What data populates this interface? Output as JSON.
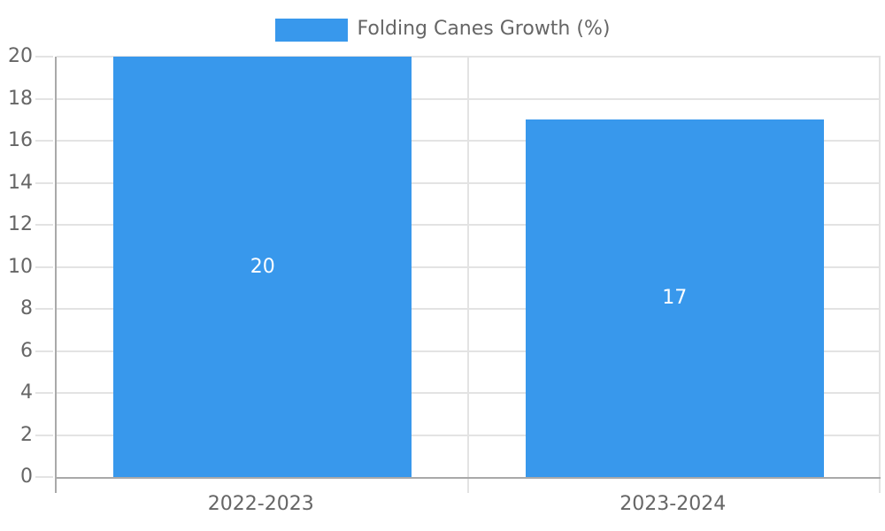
{
  "chart_data": {
    "type": "bar",
    "title": "",
    "legend": {
      "label": "Folding Canes Growth (%)",
      "position": "top"
    },
    "categories": [
      "2022-2023",
      "2023-2024"
    ],
    "series": [
      {
        "name": "Folding Canes Growth (%)",
        "values": [
          20,
          17
        ]
      }
    ],
    "value_labels": [
      "20",
      "17"
    ],
    "xlabel": "",
    "ylabel": "",
    "ylim": [
      0,
      20
    ],
    "yticks": [
      0,
      2,
      4,
      6,
      8,
      10,
      12,
      14,
      16,
      18,
      20
    ],
    "grid": true,
    "legend_visible": true,
    "bar_width_fraction": 0.724,
    "colors": {
      "bar": "#3898ec",
      "grid": "#e3e3e3",
      "axis": "#a9a9a9",
      "text": "#666666",
      "value_label": "#ffffff",
      "background": "#ffffff"
    }
  }
}
